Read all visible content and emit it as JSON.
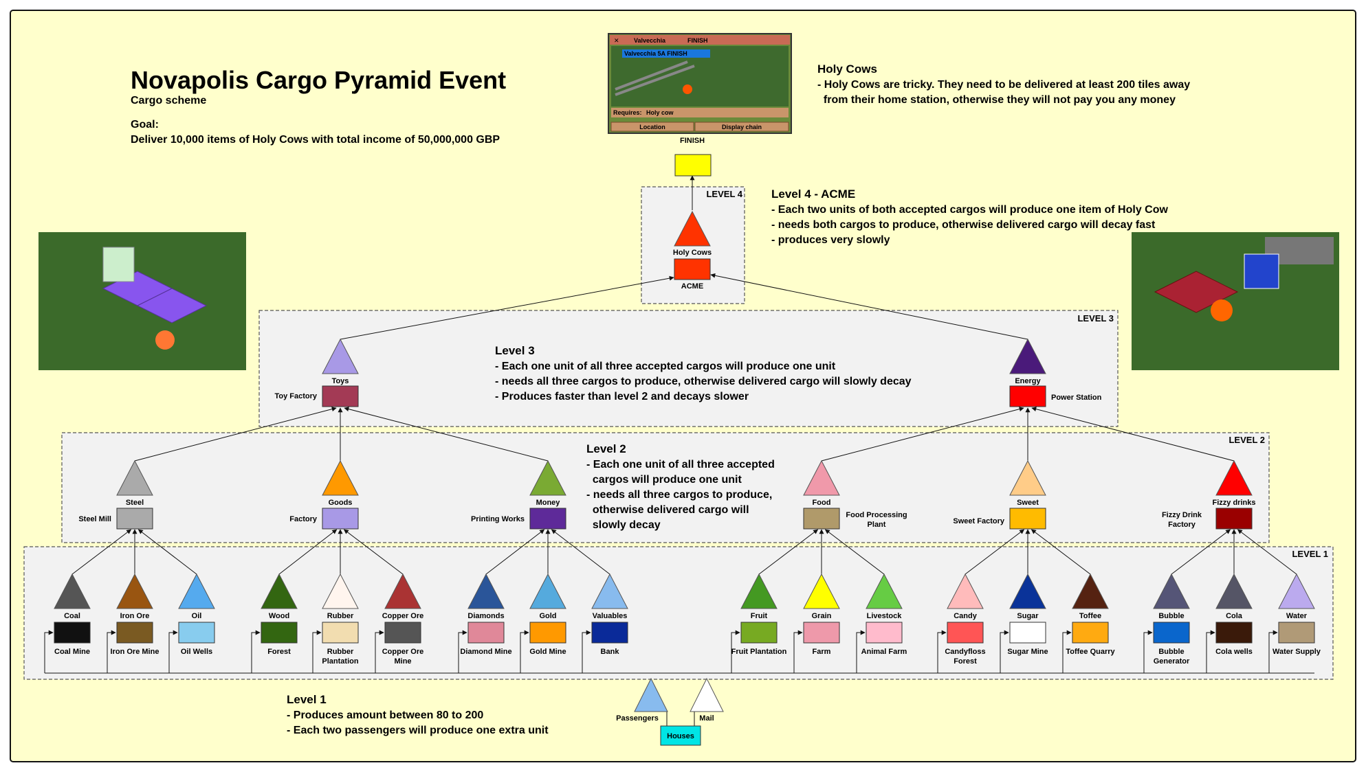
{
  "header": {
    "title": "Novapolis Cargo Pyramid Event",
    "subtitle": "Cargo scheme",
    "goal_label": "Goal:",
    "goal_text": "Deliver 10,000 items of Holy Cows with total income of 50,000,000 GBP"
  },
  "holy_cows_note": {
    "title": "Holy Cows",
    "lines": [
      "- Holy Cows are tricky. They need to be delivered at least 200 tiles away",
      "  from their home station, otherwise they will not pay you any money"
    ]
  },
  "finish_window": {
    "title_left": "Valvecchia",
    "title_right": "FINISH",
    "station_tag": "Valvecchia 5A FINISH",
    "requires_label": "Requires:",
    "requires_value": "Holy cow",
    "btn_location": "Location",
    "btn_display_chain": "Display chain"
  },
  "finish": {
    "label": "FINISH",
    "color": "#ffff00"
  },
  "level_notes": {
    "level4": {
      "title": "Level 4 - ACME",
      "lines": [
        "- Each two units of both accepted cargos will produce one item of Holy Cow",
        "- needs both cargos to produce, otherwise delivered cargo will decay fast",
        "- produces very slowly"
      ]
    },
    "level3": {
      "title": "Level 3",
      "lines": [
        "- Each one unit of all three accepted cargos will produce one unit",
        "- needs all three cargos to produce, otherwise delivered cargo will slowly decay",
        "- Produces faster than level 2 and decays slower"
      ]
    },
    "level2": {
      "title": "Level 2",
      "lines": [
        "- Each one unit of all three accepted",
        "  cargos will produce one unit",
        "- needs all three cargos to produce,",
        "  otherwise delivered cargo will",
        "  slowly decay"
      ]
    },
    "level1": {
      "title": "Level 1",
      "lines": [
        "- Produces amount between 80 to 200",
        "- Each two passengers will produce one extra unit"
      ]
    }
  },
  "level_labels": {
    "l4": "LEVEL 4",
    "l3": "LEVEL 3",
    "l2": "LEVEL 2",
    "l1": "LEVEL 1"
  },
  "level4": {
    "cargo": "Holy Cows",
    "cargo_color": "#ff3300",
    "industry": "ACME",
    "industry_color": "#ff3300"
  },
  "level3": [
    {
      "cargo": "Toys",
      "cargo_color": "#a899e6",
      "industry": "Toy Factory",
      "industry_color": "#a33a55"
    },
    {
      "cargo": "Energy",
      "cargo_color": "#4a1a7a",
      "industry": "Power Station",
      "industry_color": "#ff0000"
    }
  ],
  "level2": [
    {
      "cargo": "Steel",
      "cargo_color": "#aaaaaa",
      "industry": "Steel Mill",
      "industry_color": "#aaaaaa"
    },
    {
      "cargo": "Goods",
      "cargo_color": "#ff9900",
      "industry": "Factory",
      "industry_color": "#a899e6"
    },
    {
      "cargo": "Money",
      "cargo_color": "#7aaa33",
      "industry": "Printing Works",
      "industry_color": "#5e2a99"
    },
    {
      "cargo": "Food",
      "cargo_color": "#f099aa",
      "industry": "Food Processing Plant",
      "industry_color": "#b09a6a"
    },
    {
      "cargo": "Sweet",
      "cargo_color": "#ffcc88",
      "industry": "Sweet Factory",
      "industry_color": "#ffbb00"
    },
    {
      "cargo": "Fizzy drinks",
      "cargo_color": "#ff0000",
      "industry": "Fizzy Drink Factory",
      "industry_color": "#9a0000"
    }
  ],
  "level1": [
    {
      "cargo": "Coal",
      "cargo_color": "#555555",
      "industry": "Coal Mine",
      "industry_color": "#111111"
    },
    {
      "cargo": "Iron Ore",
      "cargo_color": "#995511",
      "industry": "Iron Ore Mine",
      "industry_color": "#7a5a22"
    },
    {
      "cargo": "Oil",
      "cargo_color": "#55aaee",
      "industry": "Oil Wells",
      "industry_color": "#88ccee"
    },
    {
      "cargo": "Wood",
      "cargo_color": "#336611",
      "industry": "Forest",
      "industry_color": "#336611"
    },
    {
      "cargo": "Rubber",
      "cargo_color": "#fff5ee",
      "industry": "Rubber Plantation",
      "industry_color": "#f2ddb0"
    },
    {
      "cargo": "Copper Ore",
      "cargo_color": "#aa3333",
      "industry": "Copper Ore Mine",
      "industry_color": "#555555"
    },
    {
      "cargo": "Diamonds",
      "cargo_color": "#2a5599",
      "industry": "Diamond Mine",
      "industry_color": "#e08899"
    },
    {
      "cargo": "Gold",
      "cargo_color": "#55aadd",
      "industry": "Gold Mine",
      "industry_color": "#ff9900"
    },
    {
      "cargo": "Valuables",
      "cargo_color": "#88bbee",
      "industry": "Bank",
      "industry_color": "#0a2a99"
    },
    {
      "cargo": "Fruit",
      "cargo_color": "#449922",
      "industry": "Fruit Plantation",
      "industry_color": "#77aa22"
    },
    {
      "cargo": "Grain",
      "cargo_color": "#ffff00",
      "industry": "Farm",
      "industry_color": "#ee99aa"
    },
    {
      "cargo": "Livestock",
      "cargo_color": "#66cc44",
      "industry": "Animal Farm",
      "industry_color": "#ffbbcc"
    },
    {
      "cargo": "Candy",
      "cargo_color": "#ffbbbb",
      "industry": "Candyfloss Forest",
      "industry_color": "#ff5555"
    },
    {
      "cargo": "Sugar",
      "cargo_color": "#0a3399",
      "industry": "Sugar Mine",
      "industry_color": "#ffffff"
    },
    {
      "cargo": "Toffee",
      "cargo_color": "#552211",
      "industry": "Toffee Quarry",
      "industry_color": "#ffaa11"
    },
    {
      "cargo": "Bubble",
      "cargo_color": "#555577",
      "industry": "Bubble Generator",
      "industry_color": "#0a66cc"
    },
    {
      "cargo": "Cola",
      "cargo_color": "#555566",
      "industry": "Cola wells",
      "industry_color": "#3a1a0a"
    },
    {
      "cargo": "Water",
      "cargo_color": "#bbaaee",
      "industry": "Water Supply",
      "industry_color": "#b09a77"
    }
  ],
  "houses": {
    "industry": "Houses",
    "industry_color": "#00e5e5",
    "cargos": [
      {
        "name": "Passengers",
        "color": "#88bbee"
      },
      {
        "name": "Mail",
        "color": "#ffffff"
      }
    ]
  },
  "colors": {
    "background": "#ffffcc",
    "level_box": "#f2f2f2",
    "frame": "#111111",
    "box_border": "#555555"
  }
}
